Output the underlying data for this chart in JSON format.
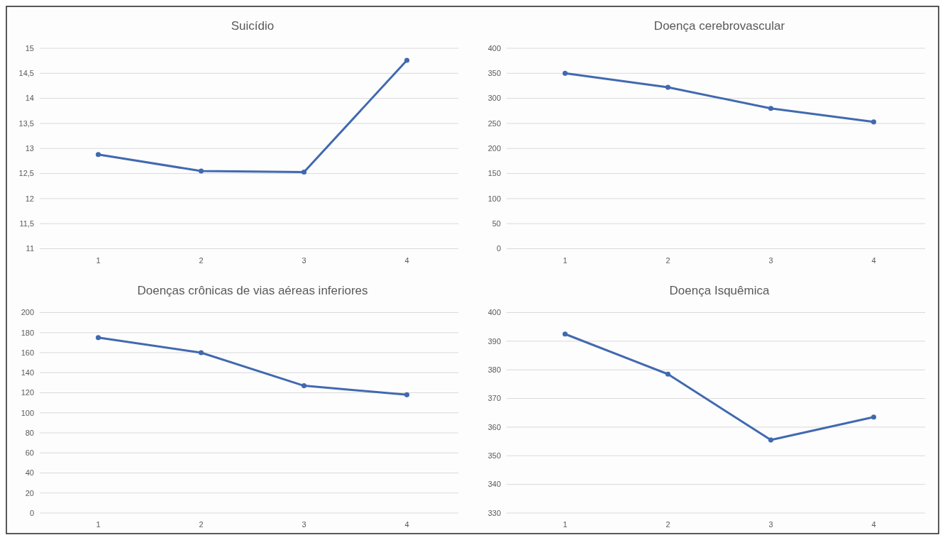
{
  "chart_data": [
    {
      "type": "line",
      "title": "Suicídio",
      "categories": [
        "1",
        "2",
        "3",
        "4"
      ],
      "series": [
        {
          "color": "#4169b0",
          "values": [
            12.88,
            12.55,
            12.53,
            14.76
          ]
        }
      ],
      "ylim": [
        11,
        15
      ],
      "yticks": [
        11,
        {
          "value": 11.5,
          "label": "11,5"
        },
        12,
        {
          "value": 12.5,
          "label": "12,5"
        },
        13,
        {
          "value": 13.5,
          "label": "13,5"
        },
        14,
        {
          "value": 14.5,
          "label": "14,5"
        },
        15
      ],
      "grid": "y",
      "marker": "circle"
    },
    {
      "type": "line",
      "title": "Doença cerebrovascular",
      "categories": [
        "1",
        "2",
        "3",
        "4"
      ],
      "series": [
        {
          "color": "#4169b0",
          "values": [
            350,
            322,
            280,
            253
          ]
        }
      ],
      "ylim": [
        0,
        400
      ],
      "yticks": [
        0,
        50,
        100,
        150,
        200,
        250,
        300,
        350,
        400
      ],
      "grid": "y",
      "marker": "circle"
    },
    {
      "type": "line",
      "title": "Doenças crônicas de vias aéreas inferiores",
      "categories": [
        "1",
        "2",
        "3",
        "4"
      ],
      "series": [
        {
          "color": "#4169b0",
          "values": [
            175,
            160,
            127,
            118
          ]
        }
      ],
      "ylim": [
        0,
        200
      ],
      "yticks": [
        0,
        20,
        40,
        60,
        80,
        100,
        120,
        140,
        160,
        180,
        200
      ],
      "grid": "y",
      "marker": "circle"
    },
    {
      "type": "line",
      "title": "Doença Isquêmica",
      "categories": [
        "1",
        "2",
        "3",
        "4"
      ],
      "series": [
        {
          "color": "#4169b0",
          "values": [
            392.5,
            378.5,
            355.5,
            363.5
          ]
        }
      ],
      "ylim": [
        330,
        400
      ],
      "yticks": [
        330,
        340,
        350,
        360,
        370,
        380,
        390,
        400
      ],
      "grid": "y",
      "marker": "circle"
    }
  ]
}
